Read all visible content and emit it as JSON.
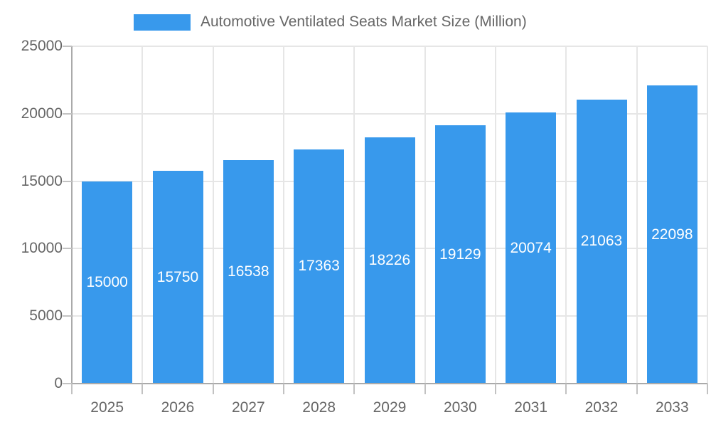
{
  "chart_data": {
    "type": "bar",
    "title": "Automotive Ventilated Seats Market Size (Million)",
    "legend": {
      "position": "top",
      "entries": [
        "Automotive Ventilated Seats Market Size (Million)"
      ]
    },
    "categories": [
      "2025",
      "2026",
      "2027",
      "2028",
      "2029",
      "2030",
      "2031",
      "2032",
      "2033"
    ],
    "values": [
      15000,
      15750,
      16538,
      17363,
      18226,
      19129,
      20074,
      21063,
      22098
    ],
    "xlabel": "",
    "ylabel": "",
    "ylim": [
      0,
      25000
    ],
    "ytick_step": 5000,
    "ytick_labels": [
      "0",
      "5000",
      "10000",
      "15000",
      "20000",
      "25000"
    ],
    "grid": true,
    "bar_labels_visible": true,
    "colors": {
      "bar": "#3899EC",
      "bar_label": "#ffffff",
      "axis_text": "#666666",
      "grid_line": "#e6e6e6",
      "axis_line": "#aaaaaa",
      "tick_line": "#c2c2c2",
      "background": "#ffffff"
    }
  }
}
